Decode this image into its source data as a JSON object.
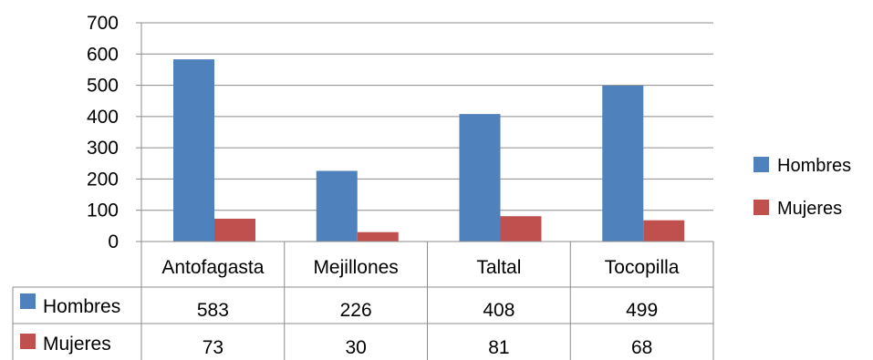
{
  "chart_data": {
    "type": "bar",
    "categories": [
      "Antofagasta",
      "Mejillones",
      "Taltal",
      "Tocopilla"
    ],
    "series": [
      {
        "name": "Hombres",
        "values": [
          583,
          226,
          408,
          499
        ],
        "color": "#4F81BD"
      },
      {
        "name": "Mujeres",
        "values": [
          73,
          30,
          81,
          68
        ],
        "color": "#C0504D"
      }
    ],
    "y_ticks": [
      "0",
      "100",
      "200",
      "300",
      "400",
      "500",
      "600",
      "700"
    ],
    "ylim": [
      0,
      700
    ],
    "grid": true,
    "legend_position": "right",
    "data_table": true
  }
}
